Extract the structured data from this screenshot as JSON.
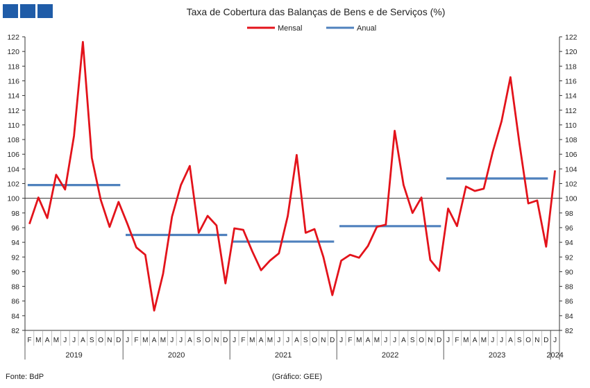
{
  "header": {
    "logo_colors": [
      "#1f5ca8",
      "#1f5ca8",
      "#1f5ca8"
    ]
  },
  "footer": {
    "source": "Fonte: BdP",
    "credit": "(Gráfico: GEE)"
  },
  "chart_data": {
    "type": "line",
    "title": "Taxa de Cobertura das Balanças de Bens e de Serviços (%)",
    "ylim": [
      82,
      122
    ],
    "yticks": [
      82,
      84,
      86,
      88,
      90,
      92,
      94,
      96,
      98,
      100,
      102,
      104,
      106,
      108,
      110,
      112,
      114,
      116,
      118,
      120,
      122
    ],
    "reference_line": 100,
    "grid": false,
    "legend_position": "top-center",
    "month_letters": [
      "J",
      "F",
      "M",
      "A",
      "M",
      "J",
      "J",
      "A",
      "S",
      "O",
      "N",
      "D"
    ],
    "x_month_labels": [
      "F",
      "M",
      "A",
      "M",
      "J",
      "J",
      "A",
      "S",
      "O",
      "N",
      "D",
      "J",
      "F",
      "M",
      "A",
      "M",
      "J",
      "J",
      "A",
      "S",
      "O",
      "N",
      "D",
      "J",
      "F",
      "M",
      "A",
      "M",
      "J",
      "J",
      "A",
      "S",
      "O",
      "N",
      "D",
      "J",
      "F",
      "M",
      "A",
      "M",
      "J",
      "J",
      "A",
      "S",
      "O",
      "N",
      "D",
      "J",
      "F",
      "M",
      "A",
      "M",
      "J",
      "J",
      "A",
      "S",
      "O",
      "N",
      "D",
      "J"
    ],
    "years": [
      "2019",
      "2020",
      "2021",
      "2022",
      "2023",
      "2024"
    ],
    "series": [
      {
        "name": "Mensal",
        "color": "#e3131b",
        "start": "2019-02",
        "values": [
          96.5,
          100.1,
          97.3,
          103.2,
          101.2,
          108.5,
          121.3,
          105.5,
          99.8,
          96.1,
          99.5,
          96.5,
          93.3,
          92.3,
          84.7,
          89.7,
          97.5,
          101.8,
          104.4,
          95.3,
          97.6,
          96.3,
          88.4,
          95.9,
          95.7,
          92.8,
          90.2,
          91.5,
          92.5,
          97.6,
          105.9,
          95.3,
          95.8,
          92.0,
          86.8,
          91.5,
          92.3,
          91.9,
          93.5,
          96.1,
          96.4,
          109.2,
          101.8,
          98.0,
          100.1,
          91.6,
          90.1,
          98.6,
          96.2,
          101.6,
          101.0,
          101.3,
          106.3,
          110.5,
          116.5,
          107.5,
          99.3,
          99.7,
          93.4,
          103.8
        ]
      },
      {
        "name": "Anual",
        "color": "#4f81bd",
        "segments": [
          {
            "year": "2019",
            "value": 101.8
          },
          {
            "year": "2020",
            "value": 95.0
          },
          {
            "year": "2021",
            "value": 94.1
          },
          {
            "year": "2022",
            "value": 96.2
          },
          {
            "year": "2023",
            "value": 102.7
          }
        ]
      }
    ]
  }
}
